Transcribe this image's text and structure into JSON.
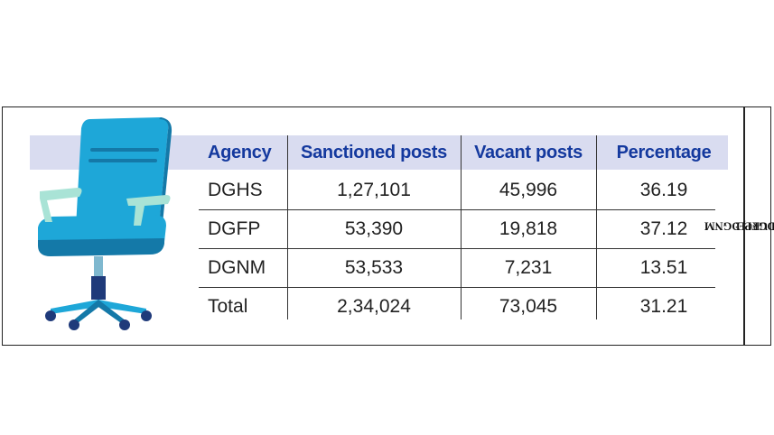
{
  "chart_data": {
    "type": "table",
    "columns": [
      "Agency",
      "Sanctioned posts",
      "Vacant posts",
      "Percentage"
    ],
    "rows": [
      [
        "DGHS",
        "1,27,101",
        "45,996",
        "36.19"
      ],
      [
        "DGFP",
        "53,390",
        "19,818",
        "37.12"
      ],
      [
        "DGNM",
        "53,533",
        "7,231",
        "13.51"
      ],
      [
        "Total",
        "2,34,024",
        "73,045",
        "31.21"
      ]
    ],
    "source_label": "SOURCE: ",
    "source_value": "DGHS, DGFP, DGNM"
  },
  "colors": {
    "header_text": "#14399e",
    "header_band": "#d9dcf0",
    "chair_blue": "#1ea7d8",
    "chair_dark": "#1479a8",
    "base_navy": "#1f3a7a"
  },
  "icons": {
    "illustration": "office-chair-icon"
  }
}
